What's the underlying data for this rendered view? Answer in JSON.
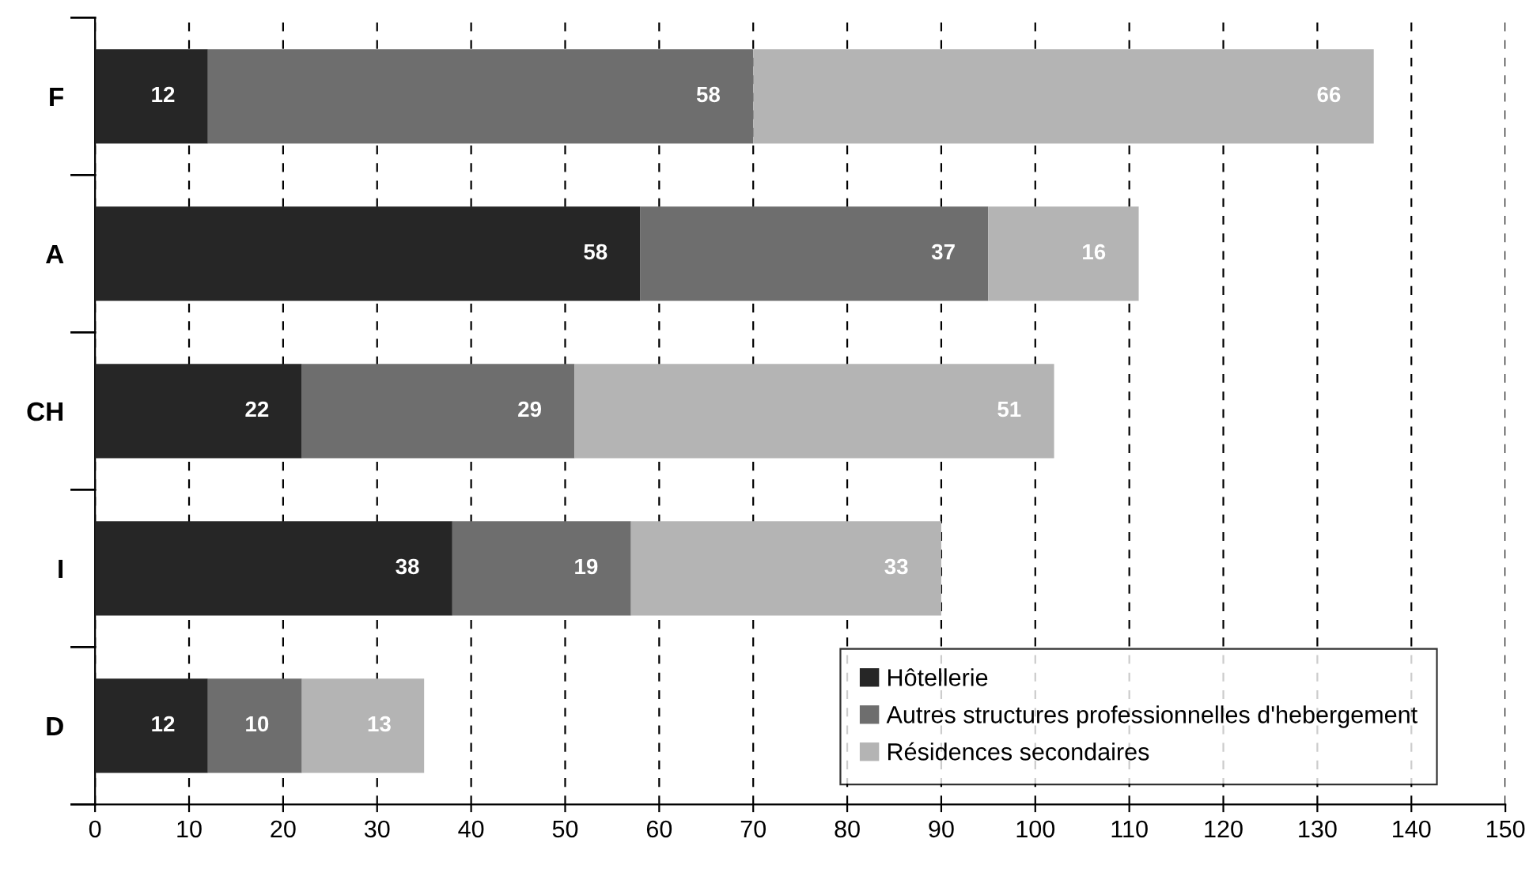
{
  "chart_data": {
    "type": "bar",
    "orientation": "horizontal",
    "stacked": true,
    "categories": [
      "F",
      "A",
      "CH",
      "I",
      "D"
    ],
    "series": [
      {
        "name": "Hôtellerie",
        "color": "#262626",
        "values": [
          12,
          58,
          22,
          38,
          12
        ]
      },
      {
        "name": "Autres structures professionnelles d'hebergement",
        "color": "#6e6e6e",
        "values": [
          58,
          37,
          29,
          19,
          10
        ]
      },
      {
        "name": "Résidences secondaires",
        "color": "#b4b4b4",
        "values": [
          66,
          16,
          51,
          33,
          13
        ]
      }
    ],
    "xlim": [
      0,
      150
    ],
    "xticks": [
      0,
      10,
      20,
      30,
      40,
      50,
      60,
      70,
      80,
      90,
      100,
      110,
      120,
      130,
      140,
      150
    ],
    "grid": "x",
    "legend": "bottom right",
    "data_labels": true
  }
}
